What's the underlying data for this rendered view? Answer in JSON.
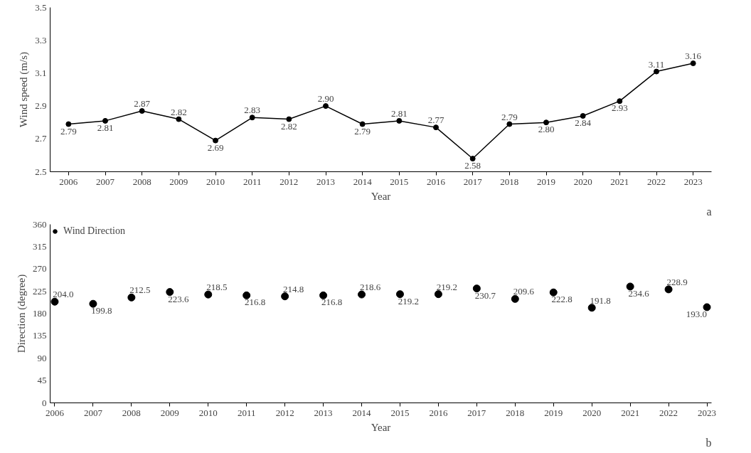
{
  "chart_data": [
    {
      "type": "line",
      "xlabel": "Year",
      "ylabel": "Wind speed (m/s)",
      "categories": [
        "2006",
        "2007",
        "2008",
        "2009",
        "2010",
        "2011",
        "2012",
        "2013",
        "2014",
        "2015",
        "2016",
        "2017",
        "2018",
        "2019",
        "2020",
        "2021",
        "2022",
        "2023"
      ],
      "series": [
        {
          "color": "#000000",
          "values": [
            2.79,
            2.81,
            2.87,
            2.82,
            2.69,
            2.83,
            2.82,
            2.9,
            2.79,
            2.81,
            2.77,
            2.58,
            2.79,
            2.8,
            2.84,
            2.93,
            3.11,
            3.16
          ],
          "value_labels": [
            "2.79",
            "2.81",
            "2.87",
            "2.82",
            "2.69",
            "2.83",
            "2.82",
            "2.90",
            "2.79",
            "2.81",
            "2.77",
            "2.58",
            "2.79",
            "2.80",
            "2.84",
            "2.93",
            "3.11",
            "3.16"
          ]
        }
      ],
      "ylim": [
        2.5,
        3.5
      ],
      "yticks": [
        2.5,
        2.7,
        2.9,
        3.1,
        3.3,
        3.5
      ],
      "marker": "circle",
      "line_style": "solid",
      "grid": false,
      "legend": false,
      "annotations": [
        "a"
      ]
    },
    {
      "type": "scatter",
      "xlabel": "Year",
      "ylabel": "Direction (degree)",
      "categories": [
        "2006",
        "2007",
        "2008",
        "2009",
        "2010",
        "2011",
        "2012",
        "2013",
        "2014",
        "2015",
        "2016",
        "2017",
        "2018",
        "2019",
        "2020",
        "2021",
        "2022",
        "2023"
      ],
      "series": [
        {
          "name": "Wind Direction",
          "color": "#000000",
          "values": [
            204.0,
            199.8,
            212.5,
            223.6,
            218.5,
            216.8,
            214.8,
            216.8,
            218.6,
            219.2,
            219.2,
            230.7,
            209.6,
            222.8,
            191.8,
            234.6,
            228.9,
            193.0
          ],
          "value_labels": [
            "204.0",
            "199.8",
            "212.5",
            "223.6",
            "218.5",
            "216.8",
            "214.8",
            "216.8",
            "218.6",
            "219.2",
            "219.2",
            "230.7",
            "209.6",
            "222.8",
            "191.8",
            "234.6",
            "228.9",
            "193.0"
          ]
        }
      ],
      "ylim": [
        0,
        360
      ],
      "yticks": [
        0,
        45,
        90,
        135,
        180,
        225,
        270,
        315,
        360
      ],
      "marker": "circle",
      "grid": false,
      "legend": "top left",
      "annotations": [
        "b"
      ]
    }
  ]
}
